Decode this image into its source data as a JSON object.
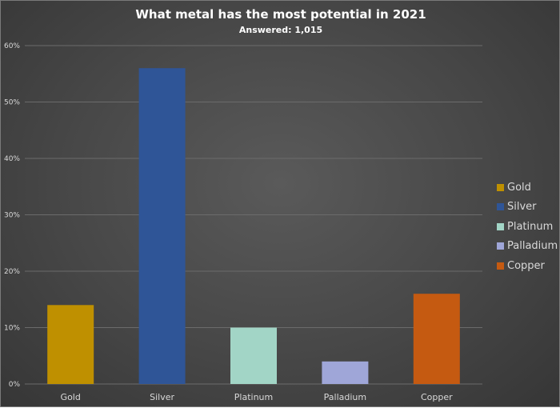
{
  "chart_data": {
    "type": "bar",
    "title": "What metal has the most potential in 2021",
    "subtitle": "Answered: 1,015",
    "categories": [
      "Gold",
      "Silver",
      "Platinum",
      "Palladium",
      "Copper"
    ],
    "values": [
      14,
      56,
      10,
      4,
      16
    ],
    "colors": [
      "#bf9000",
      "#2f5597",
      "#a2d5c6",
      "#9fa6d8",
      "#c55a11"
    ],
    "ylim": [
      0,
      60
    ],
    "yticks": [
      0,
      10,
      20,
      30,
      40,
      50,
      60
    ],
    "ytick_labels": [
      "0%",
      "10%",
      "20%",
      "30%",
      "40%",
      "50%",
      "60%"
    ],
    "grid": true,
    "legend_position": "right",
    "legend": [
      "Gold",
      "Silver",
      "Platinum",
      "Palladium",
      "Copper"
    ]
  }
}
